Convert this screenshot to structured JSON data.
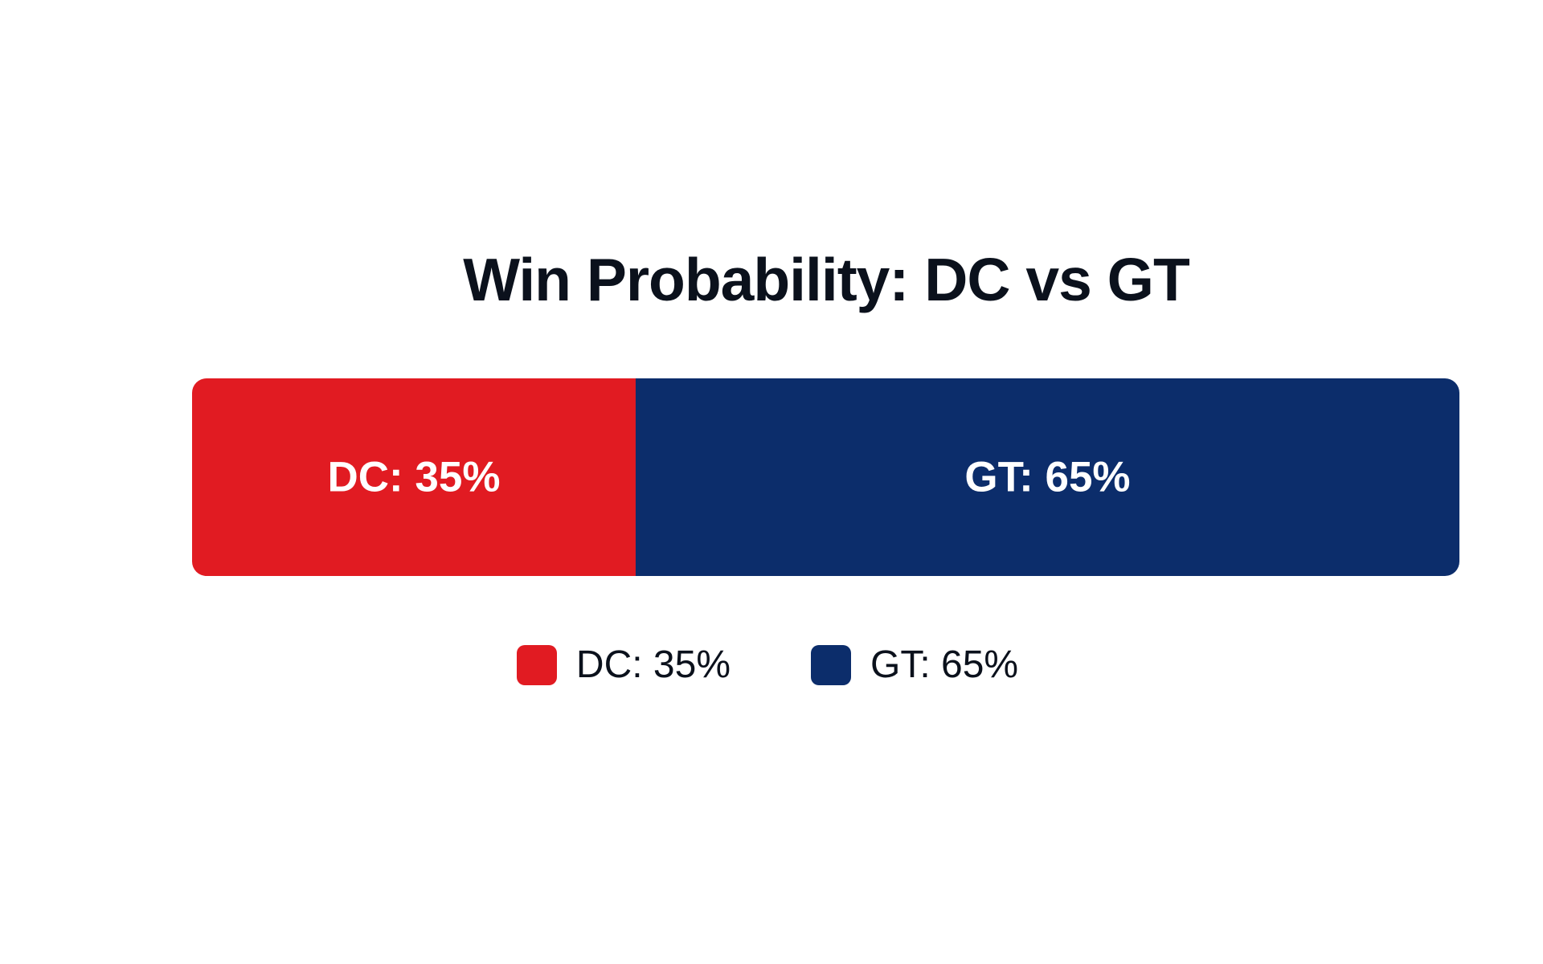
{
  "chart_data": {
    "type": "bar",
    "orientation": "horizontal-stacked",
    "title": "Win Probability: DC vs GT",
    "unit": "%",
    "segments": [
      {
        "label": "DC: 35%",
        "name": "DC",
        "value": 35,
        "color": "#e11b22"
      },
      {
        "label": "GT: 65%",
        "name": "GT",
        "value": 65,
        "color": "#0c2d6b"
      }
    ],
    "legend": {
      "placement": "bottom-center",
      "items": [
        {
          "label": "DC: 35%",
          "color": "#e11b22"
        },
        {
          "label": "GT: 65%",
          "color": "#0c2d6b"
        }
      ]
    },
    "grid": false
  }
}
